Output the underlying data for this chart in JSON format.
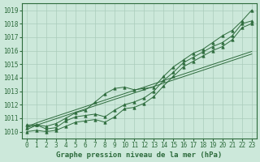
{
  "title": "Graphe pression niveau de la mer (hPa)",
  "background_color": "#cce8da",
  "grid_color": "#aaccbb",
  "line_color": "#2d6b3c",
  "xlim": [
    -0.5,
    23.5
  ],
  "ylim": [
    1009.5,
    1019.5
  ],
  "yticks": [
    1010,
    1011,
    1012,
    1013,
    1014,
    1015,
    1016,
    1017,
    1018,
    1019
  ],
  "xticks": [
    0,
    1,
    2,
    3,
    4,
    5,
    6,
    7,
    8,
    9,
    10,
    11,
    12,
    13,
    14,
    15,
    16,
    17,
    18,
    19,
    20,
    21,
    22,
    23
  ],
  "hours": [
    0,
    1,
    2,
    3,
    4,
    5,
    6,
    7,
    8,
    9,
    10,
    11,
    12,
    13,
    14,
    15,
    16,
    17,
    18,
    19,
    20,
    21,
    22,
    23
  ],
  "pressure_main": [
    1010.3,
    1010.5,
    1010.2,
    1010.3,
    1010.8,
    1011.1,
    1011.2,
    1011.3,
    1011.1,
    1011.6,
    1012.0,
    1012.2,
    1012.5,
    1013.0,
    1013.8,
    1014.4,
    1015.1,
    1015.5,
    1015.9,
    1016.3,
    1016.6,
    1017.1,
    1018.0,
    1018.2
  ],
  "pressure_high": [
    1010.5,
    1010.5,
    1010.4,
    1010.6,
    1011.0,
    1011.4,
    1011.6,
    1012.2,
    1012.8,
    1013.2,
    1013.3,
    1013.1,
    1013.2,
    1013.3,
    1014.1,
    1014.8,
    1015.3,
    1015.8,
    1016.1,
    1016.6,
    1017.1,
    1017.5,
    1018.2,
    1019.0
  ],
  "pressure_low": [
    1010.0,
    1010.1,
    1010.0,
    1010.1,
    1010.4,
    1010.7,
    1010.8,
    1010.9,
    1010.7,
    1011.1,
    1011.7,
    1011.8,
    1012.1,
    1012.6,
    1013.4,
    1014.1,
    1014.8,
    1015.2,
    1015.6,
    1016.0,
    1016.3,
    1016.8,
    1017.7,
    1018.0
  ],
  "trend1": [
    1010.15,
    1010.48,
    1010.72,
    1010.96,
    1011.2,
    1011.44,
    1011.68,
    1011.92,
    1012.16,
    1012.4,
    1012.63,
    1012.87,
    1013.11,
    1013.35,
    1013.59,
    1013.83,
    1014.07,
    1014.31,
    1014.55,
    1014.79,
    1015.03,
    1015.27,
    1015.51,
    1015.75
  ],
  "trend2": [
    1010.35,
    1010.65,
    1010.9,
    1011.14,
    1011.38,
    1011.62,
    1011.86,
    1012.1,
    1012.34,
    1012.58,
    1012.82,
    1013.06,
    1013.3,
    1013.54,
    1013.78,
    1014.02,
    1014.26,
    1014.5,
    1014.74,
    1014.98,
    1015.22,
    1015.46,
    1015.7,
    1015.94
  ]
}
